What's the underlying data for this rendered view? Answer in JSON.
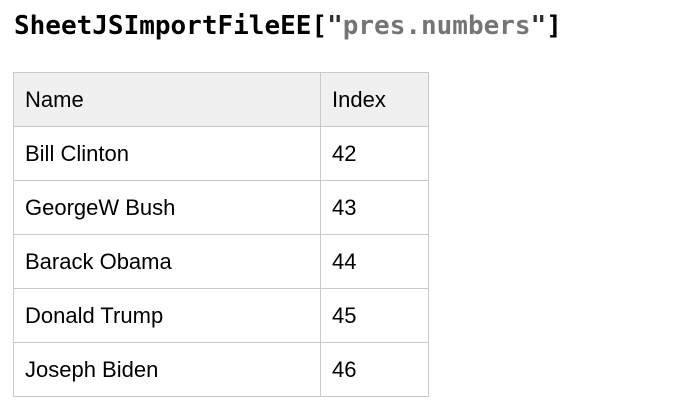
{
  "title": {
    "prefix": "SheetJSImportFileEE",
    "open_bracket": "[",
    "open_quote": "\"",
    "sheet_name": "pres.numbers",
    "close_quote": "\"",
    "close_bracket": "]",
    "colors": {
      "code": "#000000",
      "string": "#757575",
      "quote": "#2e2e2e"
    }
  },
  "table": {
    "columns": {
      "name": "Name",
      "index": "Index"
    },
    "rows": [
      {
        "name": "Bill Clinton",
        "index": "42"
      },
      {
        "name": "GeorgeW Bush",
        "index": "43"
      },
      {
        "name": "Barack Obama",
        "index": "44"
      },
      {
        "name": "Donald Trump",
        "index": "45"
      },
      {
        "name": "Joseph Biden",
        "index": "46"
      }
    ],
    "colors": {
      "border": "#c9c9c9",
      "header_bg": "#f0f0f0",
      "row_bg": "#ffffff",
      "text": "#000000"
    }
  }
}
